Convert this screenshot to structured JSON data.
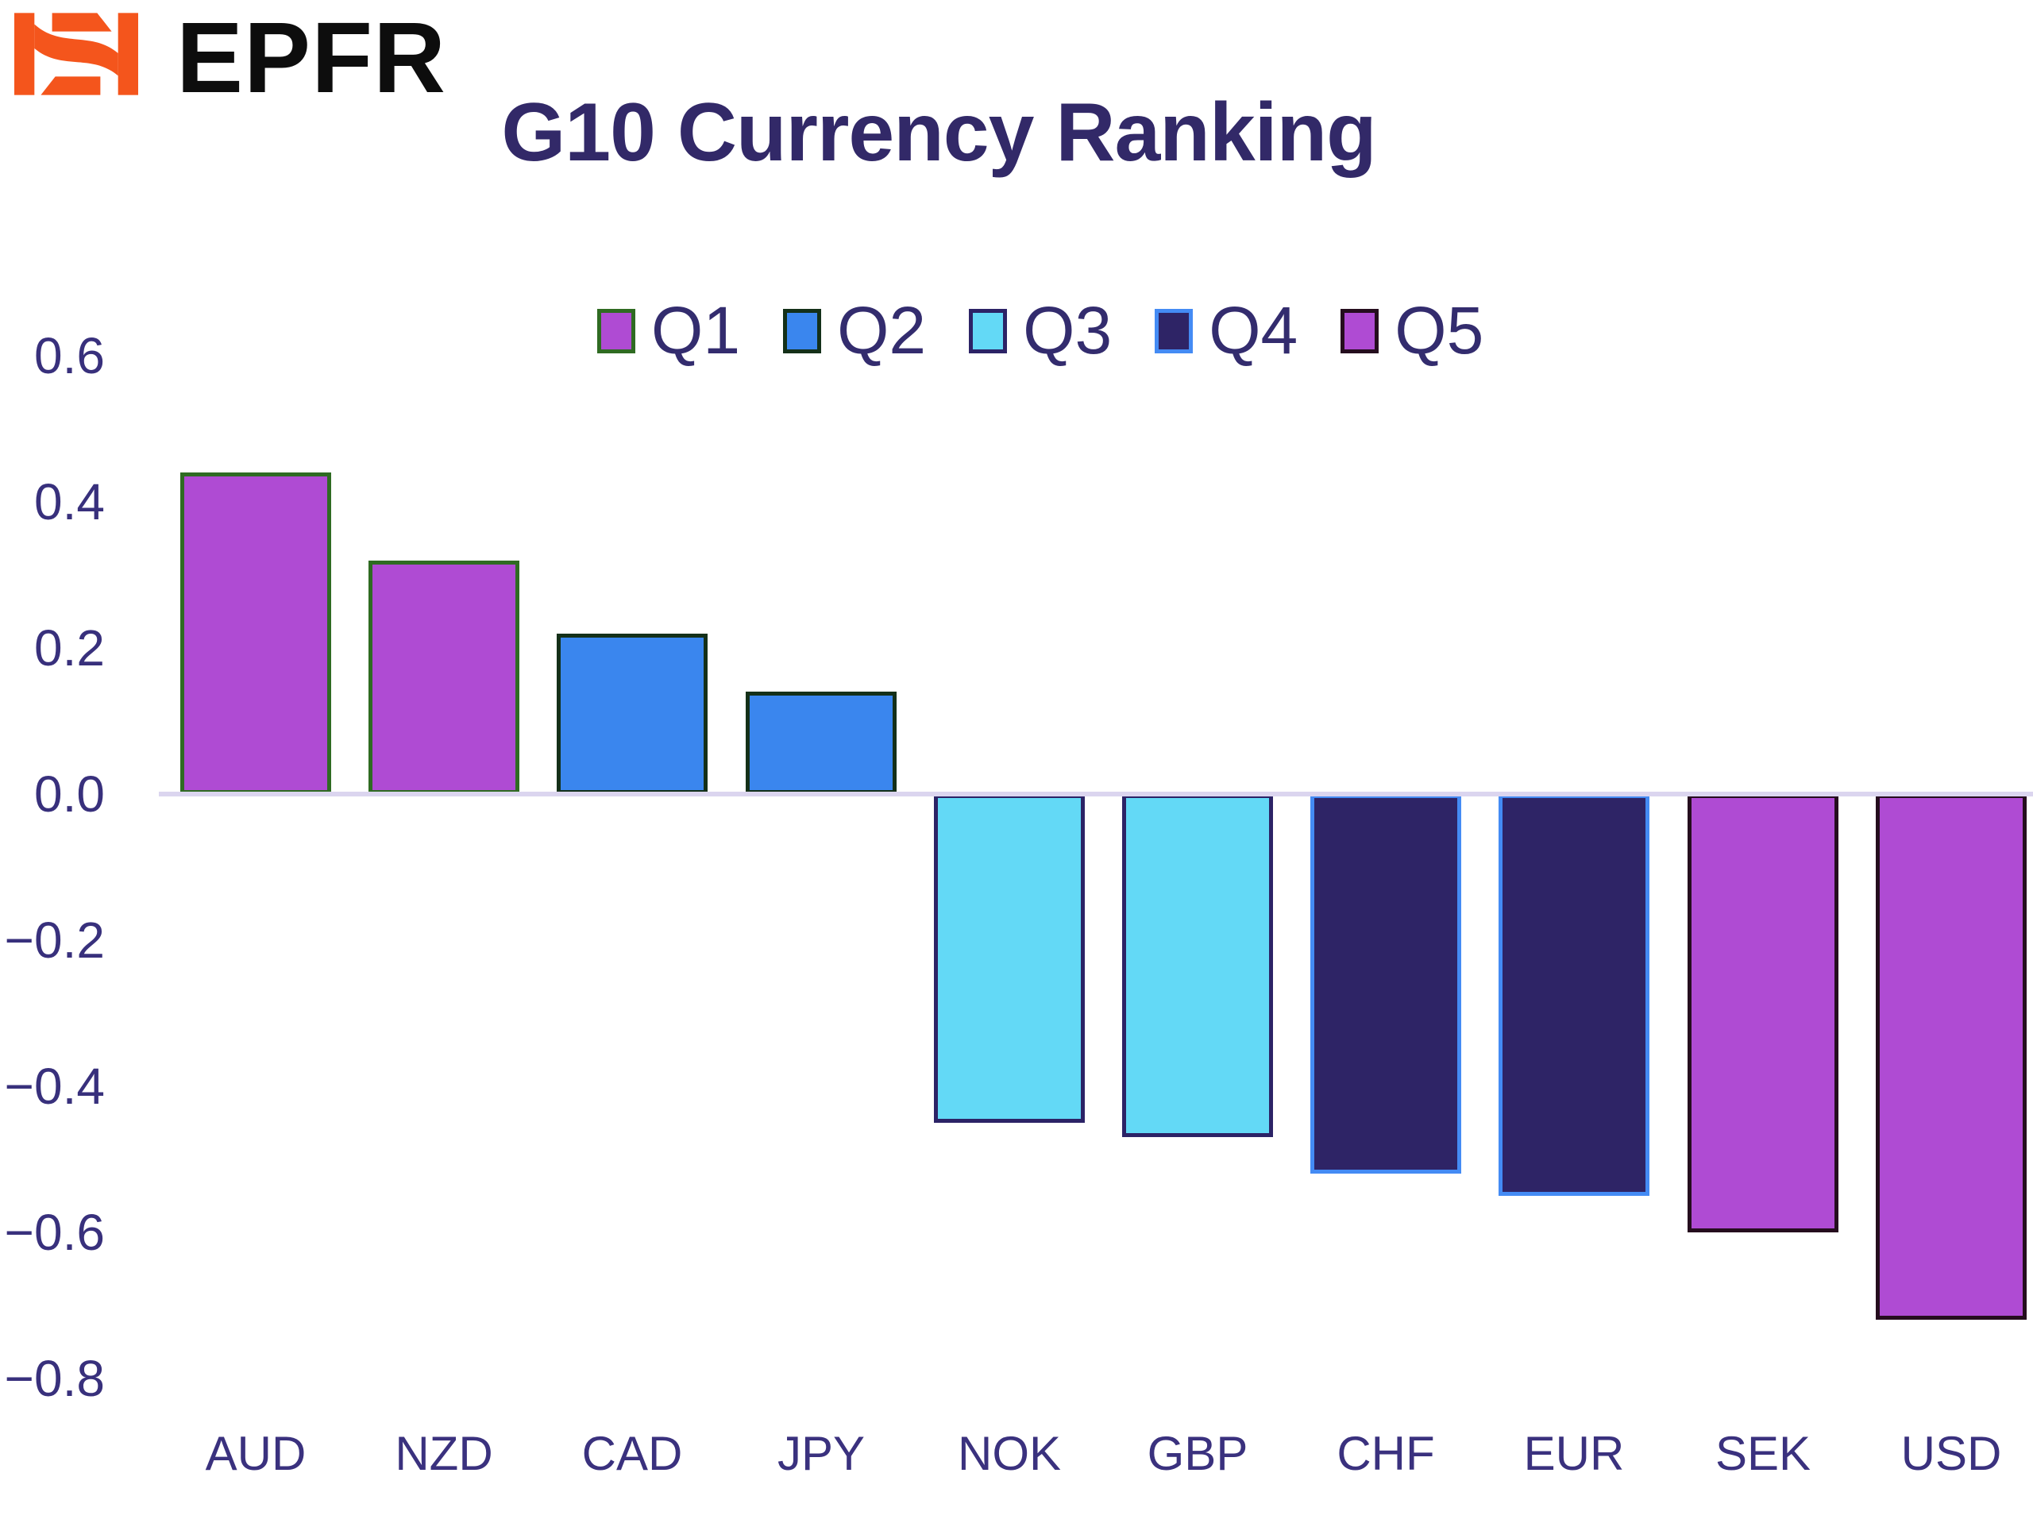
{
  "brand": {
    "wordmark": "EPFR",
    "logo_name": "isi-logo",
    "logo_color": "#F4551C",
    "wordmark_color": "#0d0d0d"
  },
  "title": {
    "text": "G10 Currency Ranking",
    "color": "#322968"
  },
  "chart_data": {
    "type": "bar",
    "title": "G10 Currency Ranking",
    "categories": [
      "AUD",
      "NZD",
      "CAD",
      "JPY",
      "NOK",
      "GBP",
      "CHF",
      "EUR",
      "SEK",
      "USD"
    ],
    "values": [
      0.44,
      0.32,
      0.22,
      0.14,
      -0.45,
      -0.47,
      -0.52,
      -0.55,
      -0.6,
      -0.72
    ],
    "quintile_of_bar": [
      "Q1",
      "Q1",
      "Q2",
      "Q2",
      "Q3",
      "Q3",
      "Q4",
      "Q4",
      "Q5",
      "Q5"
    ],
    "legend": [
      {
        "label": "Q1",
        "fill": "#AF4BD3",
        "edge": "#2F6B22"
      },
      {
        "label": "Q2",
        "fill": "#3A86EE",
        "edge": "#143019"
      },
      {
        "label": "Q3",
        "fill": "#63D9F6",
        "edge": "#2C2366"
      },
      {
        "label": "Q4",
        "fill": "#2E2466",
        "edge": "#448BF4"
      },
      {
        "label": "Q5",
        "fill": "#AF4BD3",
        "edge": "#250D1E"
      }
    ],
    "legend_position": "top-center",
    "yticks": [
      0.6,
      0.4,
      0.2,
      0.0,
      -0.2,
      -0.4,
      -0.6,
      -0.8
    ],
    "ytick_labels": [
      "0.6",
      "0.4",
      "0.2",
      "0.0",
      "−0.2",
      "−0.4",
      "−0.6",
      "−0.8"
    ],
    "ylim": [
      -0.85,
      0.65
    ],
    "xlabel": "",
    "ylabel": "",
    "grid": false,
    "axis_text_color": "#38307C",
    "x_axis_text_color": "#3A317E",
    "legend_text_color": "#332C6E",
    "zero_line_color": "#DBD5EF",
    "background_color": "#FFFFFF"
  }
}
